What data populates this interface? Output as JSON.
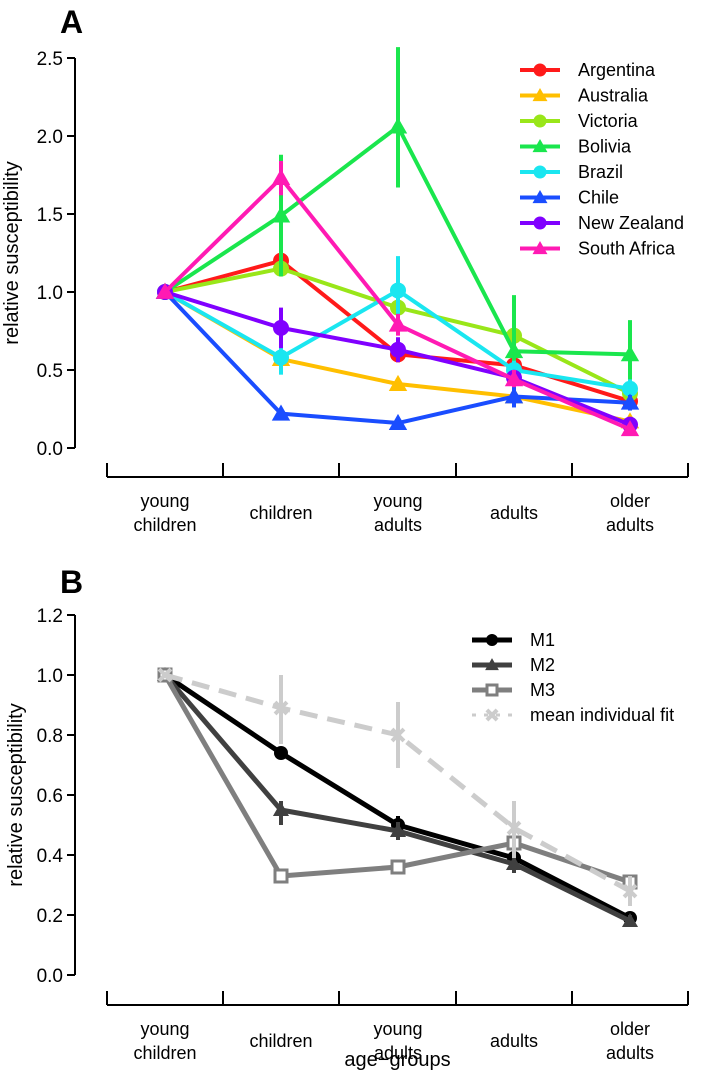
{
  "chart_data": [
    {
      "panel": "A",
      "type": "line",
      "categories": [
        [
          "young",
          "children"
        ],
        [
          "children"
        ],
        [
          "young",
          "adults"
        ],
        [
          "adults"
        ],
        [
          "older",
          "adults"
        ]
      ],
      "ylabel": "relative susceptibility",
      "xlabel": "",
      "ylim": [
        0,
        2.5
      ],
      "yticks": [
        "0.0",
        "0.5",
        "1.0",
        "1.5",
        "2.0",
        "2.5"
      ],
      "legend_position": "top-right",
      "series": [
        {
          "name": "Argentina",
          "color": "#ff1a1a",
          "marker": "circle",
          "values": [
            1.0,
            1.2,
            0.6,
            0.53,
            0.3
          ],
          "err_lo": [
            1.0,
            1.13,
            0.55,
            0.47,
            0.25
          ],
          "err_hi": [
            1.0,
            1.27,
            0.65,
            0.6,
            0.35
          ]
        },
        {
          "name": "Australia",
          "color": "#ffbf00",
          "marker": "triangle",
          "values": [
            1.0,
            0.57,
            0.41,
            0.33,
            0.17
          ],
          "err_lo": [
            1.0,
            0.53,
            0.38,
            0.3,
            0.14
          ],
          "err_hi": [
            1.0,
            0.61,
            0.44,
            0.36,
            0.2
          ]
        },
        {
          "name": "Victoria",
          "color": "#99e619",
          "marker": "circle",
          "values": [
            1.0,
            1.15,
            0.9,
            0.72,
            0.35
          ],
          "err_lo": [
            1.0,
            1.1,
            0.85,
            0.65,
            0.3
          ],
          "err_hi": [
            1.0,
            1.2,
            0.95,
            0.8,
            0.4
          ]
        },
        {
          "name": "Bolivia",
          "color": "#1ae64d",
          "marker": "triangle",
          "values": [
            1.0,
            1.49,
            2.06,
            0.62,
            0.6
          ],
          "err_lo": [
            1.0,
            1.1,
            1.67,
            0.45,
            0.4
          ],
          "err_hi": [
            1.0,
            1.88,
            2.57,
            0.98,
            0.82
          ]
        },
        {
          "name": "Brazil",
          "color": "#1ae6f0",
          "marker": "circle",
          "values": [
            1.0,
            0.58,
            1.01,
            0.5,
            0.38
          ],
          "err_lo": [
            1.0,
            0.47,
            0.8,
            0.44,
            0.33
          ],
          "err_hi": [
            1.0,
            0.7,
            1.23,
            0.56,
            0.44
          ]
        },
        {
          "name": "Chile",
          "color": "#1a4dff",
          "marker": "triangle",
          "values": [
            1.0,
            0.22,
            0.16,
            0.33,
            0.29
          ],
          "err_lo": [
            1.0,
            0.19,
            0.14,
            0.26,
            0.24
          ],
          "err_hi": [
            1.0,
            0.25,
            0.19,
            0.4,
            0.34
          ]
        },
        {
          "name": "New Zealand",
          "color": "#8000ff",
          "marker": "circle",
          "values": [
            1.0,
            0.77,
            0.63,
            0.45,
            0.15
          ],
          "err_lo": [
            1.0,
            0.64,
            0.55,
            0.4,
            0.12
          ],
          "err_hi": [
            1.0,
            0.9,
            0.71,
            0.5,
            0.18
          ]
        },
        {
          "name": "South Africa",
          "color": "#ff1ab3",
          "marker": "triangle",
          "values": [
            1.0,
            1.73,
            0.79,
            0.44,
            0.12
          ],
          "err_lo": [
            1.0,
            1.62,
            0.72,
            0.39,
            0.1
          ],
          "err_hi": [
            1.0,
            1.84,
            0.86,
            0.5,
            0.15
          ]
        }
      ]
    },
    {
      "panel": "B",
      "type": "line",
      "categories": [
        [
          "young",
          "children"
        ],
        [
          "children"
        ],
        [
          "young",
          "adults"
        ],
        [
          "adults"
        ],
        [
          "older",
          "adults"
        ]
      ],
      "ylabel": "relative susceptibility",
      "xlabel": "age−groups",
      "ylim": [
        0,
        1.2
      ],
      "yticks": [
        "0.0",
        "0.2",
        "0.4",
        "0.6",
        "0.8",
        "1.0",
        "1.2"
      ],
      "legend_position": "top-right",
      "series": [
        {
          "name": "M1",
          "color": "#000000",
          "marker": "circle",
          "dash": false,
          "values": [
            1.0,
            0.74,
            0.5,
            0.39,
            0.19
          ],
          "err_lo": [
            1.0,
            0.72,
            0.47,
            0.36,
            0.17
          ],
          "err_hi": [
            1.0,
            0.76,
            0.53,
            0.42,
            0.21
          ]
        },
        {
          "name": "M2",
          "color": "#404040",
          "marker": "triangle",
          "dash": false,
          "values": [
            1.0,
            0.55,
            0.48,
            0.37,
            0.18
          ],
          "err_lo": [
            1.0,
            0.5,
            0.45,
            0.34,
            0.16
          ],
          "err_hi": [
            1.0,
            0.58,
            0.51,
            0.4,
            0.2
          ]
        },
        {
          "name": "M3",
          "color": "#7f7f7f",
          "marker": "square-open",
          "dash": false,
          "values": [
            1.0,
            0.33,
            0.36,
            0.44,
            0.31
          ],
          "err_lo": [
            1.0,
            0.33,
            0.36,
            0.44,
            0.31
          ],
          "err_hi": [
            1.0,
            0.33,
            0.36,
            0.44,
            0.31
          ]
        },
        {
          "name": "mean individual fit",
          "color": "#cccccc",
          "marker": "cross",
          "dash": true,
          "values": [
            1.0,
            0.89,
            0.8,
            0.49,
            0.28
          ],
          "err_lo": [
            1.0,
            0.77,
            0.69,
            0.39,
            0.23
          ],
          "err_hi": [
            1.0,
            1.0,
            0.91,
            0.58,
            0.33
          ]
        }
      ]
    }
  ]
}
